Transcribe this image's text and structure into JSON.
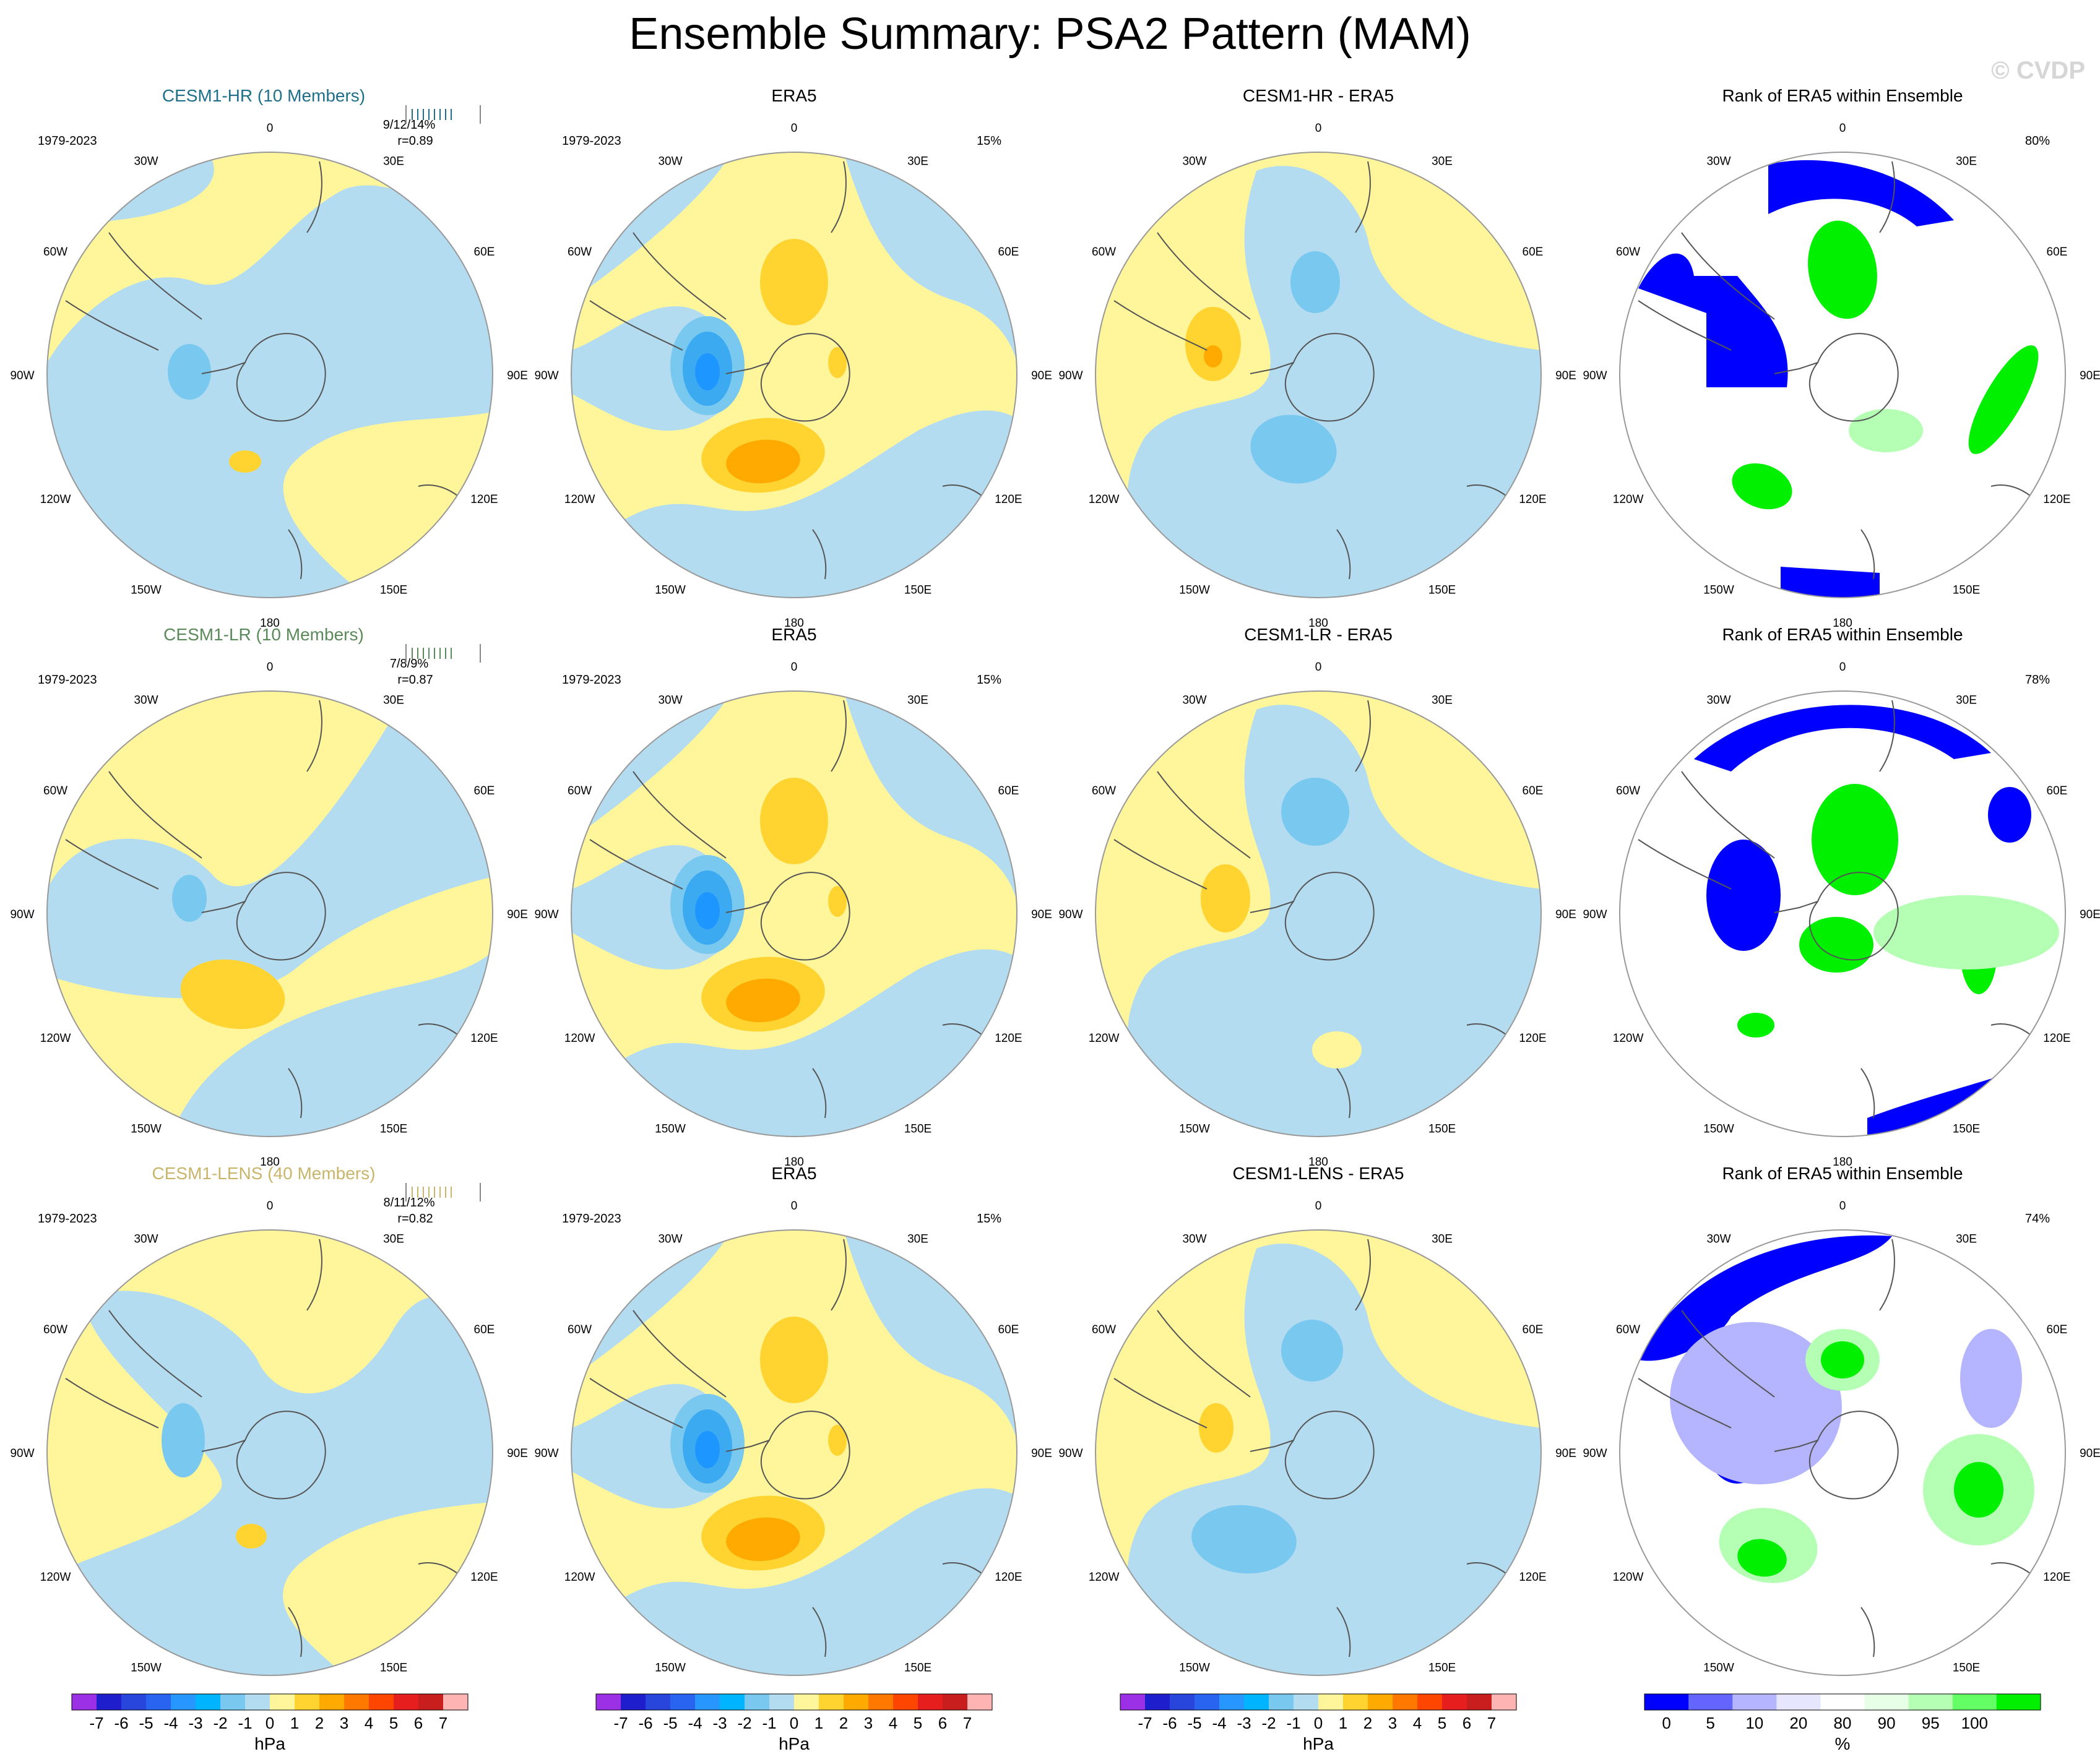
{
  "figure": {
    "title": "Ensemble Summary: PSA2 Pattern (MAM)",
    "watermark": "© CVDP"
  },
  "map_labels": {
    "lon": [
      "0",
      "30E",
      "60E",
      "90E",
      "120E",
      "150E",
      "180",
      "150W",
      "120W",
      "90W",
      "60W",
      "30W"
    ]
  },
  "colors": {
    "blue_1": "#b4dcf0",
    "blue_2": "#78c8f0",
    "blue_3": "#3caaf0",
    "blue_4": "#1e96ff",
    "yellow_1": "#fff59a",
    "yellow_2": "#ffd430",
    "orange_1": "#ffaa00",
    "rank_blue": "#0000ff",
    "rank_green": "#00f000",
    "rank_lightgreen": "#b4ffb4",
    "title_hr": "#1f6f8b",
    "title_lr": "#5a8a5a",
    "title_lens": "#c8b56a"
  },
  "rows": [
    {
      "model_title": "CESM1-HR (10 Members)",
      "period": "1979-2023",
      "stats": "9/12/14%",
      "r": "r=0.89",
      "obs_title": "ERA5",
      "obs_period": "1979-2023",
      "obs_pct": "15%",
      "diff_title": "CESM1-HR - ERA5",
      "rank_title": "Rank of ERA5 within Ensemble",
      "rank_pct": "80%"
    },
    {
      "model_title": "CESM1-LR (10 Members)",
      "period": "1979-2023",
      "stats": "7/8/9%",
      "r": "r=0.87",
      "obs_title": "ERA5",
      "obs_period": "1979-2023",
      "obs_pct": "15%",
      "diff_title": "CESM1-LR - ERA5",
      "rank_title": "Rank of ERA5 within Ensemble",
      "rank_pct": "78%"
    },
    {
      "model_title": "CESM1-LENS (40 Members)",
      "period": "1979-2023",
      "stats": "8/11/12%",
      "r": "r=0.82",
      "obs_title": "ERA5",
      "obs_period": "1979-2023",
      "obs_pct": "15%",
      "diff_title": "CESM1-LENS - ERA5",
      "rank_title": "Rank of ERA5 within Ensemble",
      "rank_pct": "74%"
    }
  ],
  "chart_data": [
    {
      "type": "heatmap",
      "title": "Ensemble Summary: PSA2 Pattern (MAM)",
      "description_units": "hPa",
      "colorbar_hpa": {
        "label": "hPa",
        "tick_labels": [
          "-7",
          "-6",
          "-5",
          "-4",
          "-3",
          "-2",
          "-1",
          "0",
          "1",
          "2",
          "3",
          "4",
          "5",
          "6",
          "7"
        ],
        "levels": [
          -7,
          -6,
          -5,
          -4,
          -3,
          -2,
          -1,
          0,
          1,
          2,
          3,
          4,
          5,
          6,
          7
        ],
        "colors": [
          "#9b30e6",
          "#1e1ecc",
          "#2846dc",
          "#2864f0",
          "#2896ff",
          "#00b4ff",
          "#78c8f0",
          "#b4dcf0",
          "#fff59a",
          "#ffd430",
          "#ffaa00",
          "#ff7800",
          "#ff4600",
          "#e61e1e",
          "#c81e1e",
          "#ffb4b4"
        ]
      },
      "colorbar_rank": {
        "label": "%",
        "tick_labels": [
          "0",
          "5",
          "10",
          "20",
          "80",
          "90",
          "95",
          "100"
        ],
        "levels": [
          0,
          5,
          10,
          20,
          80,
          90,
          95,
          100
        ],
        "colors": [
          "#0000ff",
          "#6464ff",
          "#b4b4ff",
          "#e6e6ff",
          "#ffffff",
          "#e6ffe6",
          "#b4ffb4",
          "#64ff64",
          "#00f000"
        ]
      },
      "panels": [
        {
          "name": "model-ensemble-mean",
          "anomalies": [
            {
              "lat_center": -62,
              "lon_center": -100,
              "value": -2
            },
            {
              "lat_center": -58,
              "lon_center": 165,
              "value": 1
            }
          ]
        },
        {
          "name": "era5",
          "anomalies": [
            {
              "lat_center": -62,
              "lon_center": -100,
              "value": -4
            },
            {
              "lat_center": -52,
              "lon_center": 170,
              "value": 3
            },
            {
              "lat_center": -55,
              "lon_center": 10,
              "value": 1
            }
          ]
        },
        {
          "name": "model-minus-era5",
          "anomalies": [
            {
              "lat_center": -62,
              "lon_center": -100,
              "value": 2
            },
            {
              "lat_center": -55,
              "lon_center": 170,
              "value": -2
            },
            {
              "lat_center": -50,
              "lon_center": 15,
              "value": -2
            }
          ]
        }
      ]
    }
  ]
}
